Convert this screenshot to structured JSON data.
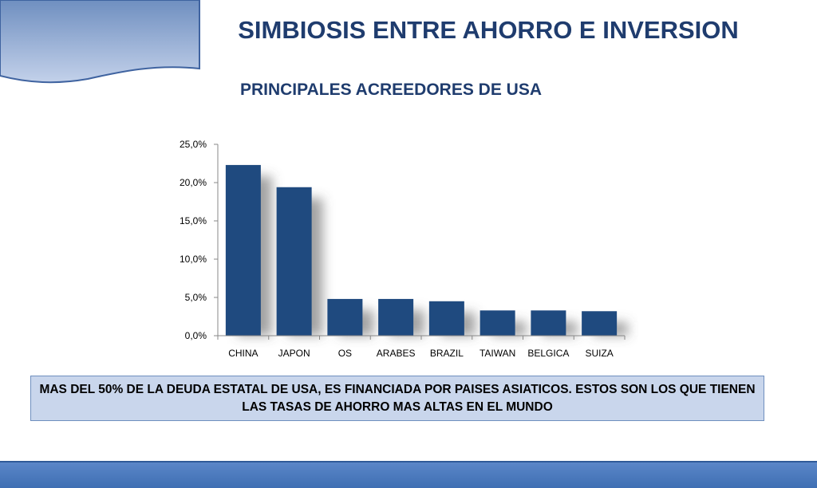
{
  "header": {
    "title": "SIMBIOSIS ENTRE AHORRO E INVERSION"
  },
  "chart_data": {
    "type": "bar",
    "title": "PRINCIPALES ACREEDORES DE USA",
    "categories": [
      "CHINA",
      "JAPON",
      "OS",
      "ARABES",
      "BRAZIL",
      "TAIWAN",
      "BELGICA",
      "SUIZA"
    ],
    "values": [
      22.3,
      19.4,
      4.8,
      4.8,
      4.5,
      3.3,
      3.3,
      3.2
    ],
    "ylim": [
      0,
      25
    ],
    "yticks": [
      "0,0%",
      "5,0%",
      "10,0%",
      "15,0%",
      "20,0%",
      "25,0%"
    ],
    "bar_color": "#1f4a7f",
    "grid": false,
    "legend": "none"
  },
  "note": {
    "text": "MAS DEL 50% DE LA DEUDA ESTATAL DE USA, ES FINANCIADA POR PAISES ASIATICOS. ESTOS SON LOS QUE TIENEN LAS TASAS DE AHORRO MAS ALTAS EN EL MUNDO"
  },
  "colors": {
    "title": "#1f3c6e",
    "note_background": "#c9d6ec",
    "footer": "#4f7dc0"
  }
}
